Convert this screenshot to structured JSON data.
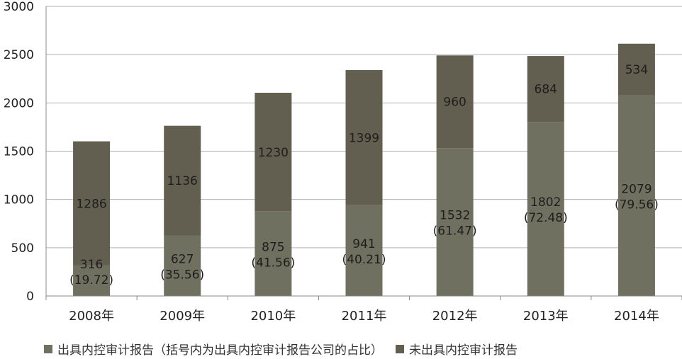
{
  "chart_data": {
    "type": "bar",
    "stacked": true,
    "categories": [
      "2008年",
      "2009年",
      "2010年",
      "2011年",
      "2012年",
      "2013年",
      "2014年"
    ],
    "series": [
      {
        "name": "出具内控审计报告（括号内为出具内控审计报告公司的占比）",
        "values": [
          316,
          627,
          875,
          941,
          1532,
          1802,
          2079
        ],
        "labels": [
          "316",
          "627",
          "875",
          "941",
          "1532",
          "1802",
          "2079"
        ],
        "sub_labels": [
          "(19.72)",
          "(35.56)",
          "(41.56)",
          "(40.21)",
          "(61.47)",
          "(72.48)",
          "(79.56)"
        ],
        "color": "#707060"
      },
      {
        "name": "未出具内控审计报告",
        "values": [
          1286,
          1136,
          1230,
          1399,
          960,
          684,
          534
        ],
        "labels": [
          "1286",
          "1136",
          "1230",
          "1399",
          "960",
          "684",
          "534"
        ],
        "color": "#625e50"
      }
    ],
    "ylim": [
      0,
      3000
    ],
    "yticks": [
      "0",
      "500",
      "1000",
      "1500",
      "2000",
      "2500",
      "3000"
    ],
    "grid": true,
    "legend": "bottom"
  }
}
